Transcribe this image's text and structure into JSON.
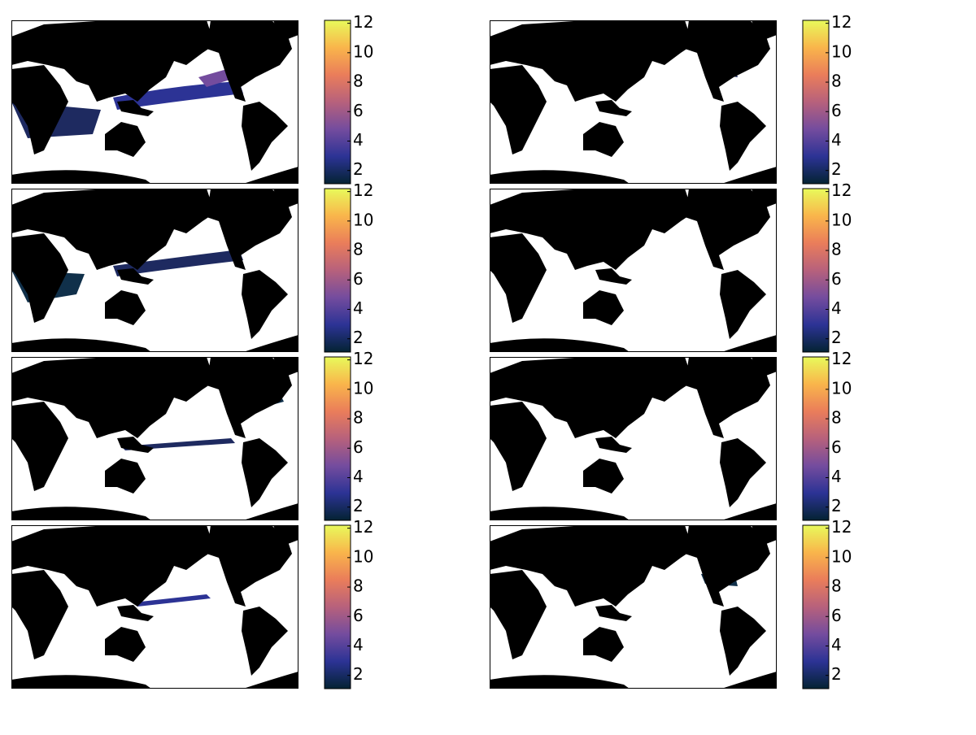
{
  "colormap": [
    "#042333",
    "#2c3395",
    "#744c9e",
    "#b7617c",
    "#ea7d5a",
    "#f9b54b",
    "#e8fa5b"
  ],
  "panels": [
    {
      "colorbar": {
        "lim": [
          1.1,
          12.2
        ],
        "ticks": [
          2,
          4,
          6,
          8,
          10,
          12
        ]
      }
    },
    {
      "colorbar": {
        "lim": [
          1.1,
          12.2
        ],
        "ticks": [
          2,
          4,
          6,
          8,
          10,
          12
        ]
      }
    },
    {
      "colorbar": {
        "lim": [
          1.1,
          12.2
        ],
        "ticks": [
          2,
          4,
          6,
          8,
          10,
          12
        ]
      }
    },
    {
      "colorbar": {
        "lim": [
          1.1,
          12.2
        ],
        "ticks": [
          2,
          4,
          6,
          8,
          10,
          12
        ]
      }
    },
    {
      "colorbar": {
        "lim": [
          1.1,
          12.2
        ],
        "ticks": [
          2,
          4,
          6,
          8,
          10,
          12
        ]
      }
    },
    {
      "colorbar": {
        "lim": [
          1.1,
          12.2
        ],
        "ticks": [
          2,
          4,
          6,
          8,
          10,
          12
        ]
      }
    },
    {
      "colorbar": {
        "lim": [
          1.1,
          12.2
        ],
        "ticks": [
          2,
          4,
          6,
          8,
          10,
          12
        ]
      }
    },
    {
      "colorbar": {
        "lim": [
          1.1,
          12.2
        ],
        "ticks": [
          2,
          4,
          6,
          8,
          10,
          12
        ]
      }
    }
  ]
}
